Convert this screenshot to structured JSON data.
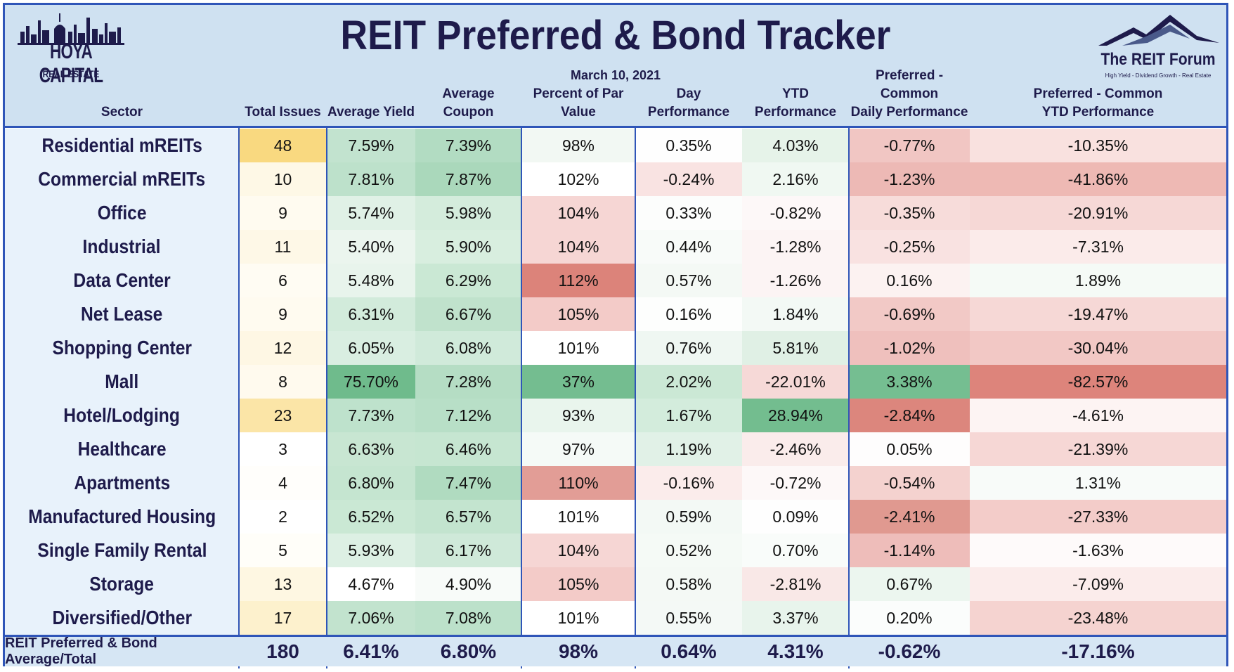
{
  "header": {
    "title": "REIT Preferred & Bond Tracker",
    "date": "March 10, 2021",
    "logo_left": {
      "line1": "HOYA CAPITAL",
      "line2": "REAL ESTATE"
    },
    "logo_right": {
      "line1": "The REIT Forum",
      "line2": "High Yield - Dividend Growth - Real Estate"
    }
  },
  "columns": [
    {
      "line1": "Sector",
      "line2": ""
    },
    {
      "line1": "Total Issues",
      "line2": ""
    },
    {
      "line1": "Average Yield",
      "line2": ""
    },
    {
      "line1": "Average Coupon",
      "line2": ""
    },
    {
      "line1": "Percent of Par Value",
      "line2": ""
    },
    {
      "line1": "Day Performance",
      "line2": ""
    },
    {
      "line1": "YTD Performance",
      "line2": ""
    },
    {
      "line1": "Preferred - Common",
      "line2": "Daily Performance"
    },
    {
      "line1": "Preferred - Common",
      "line2": "YTD Performance"
    }
  ],
  "rows": [
    {
      "sector": "Residential mREITs",
      "issues": "48",
      "yield": "7.59%",
      "coupon": "7.39%",
      "par": "98%",
      "day": "0.35%",
      "ytd": "4.03%",
      "pc_day": "-0.77%",
      "pc_ytd": "-10.35%",
      "colors": [
        "#f9d980",
        "#c2e3cf",
        "#b2dcc2",
        "#f2f8f3",
        "#fefefe",
        "#e6f3e9",
        "#f1c6c3",
        "#f9e1df"
      ]
    },
    {
      "sector": "Commercial mREITs",
      "issues": "10",
      "yield": "7.81%",
      "coupon": "7.87%",
      "par": "102%",
      "day": "-0.24%",
      "ytd": "2.16%",
      "pc_day": "-1.23%",
      "pc_ytd": "-41.86%",
      "colors": [
        "#fef8e6",
        "#bde1cb",
        "#aad8bb",
        "#ffffff",
        "#f9e3e2",
        "#f0f8f2",
        "#edb9b5",
        "#eeb9b4"
      ]
    },
    {
      "sector": "Office",
      "issues": "9",
      "yield": "5.74%",
      "coupon": "5.98%",
      "par": "104%",
      "day": "0.33%",
      "ytd": "-0.82%",
      "pc_day": "-0.35%",
      "pc_ytd": "-20.91%",
      "colors": [
        "#fffbf0",
        "#e0f1e6",
        "#d4ecdc",
        "#f6d6d4",
        "#fcfdfc",
        "#fdf8f8",
        "#f7dcda",
        "#f6d8d6"
      ]
    },
    {
      "sector": "Industrial",
      "issues": "11",
      "yield": "5.40%",
      "coupon": "5.90%",
      "par": "104%",
      "day": "0.44%",
      "ytd": "-1.28%",
      "pc_day": "-0.25%",
      "pc_ytd": "-7.31%",
      "colors": [
        "#fef8e7",
        "#ebf5ee",
        "#d8eedf",
        "#f6d6d4",
        "#f8fbf9",
        "#fcf4f4",
        "#f9e2e1",
        "#fbebea"
      ]
    },
    {
      "sector": "Data Center",
      "issues": "6",
      "yield": "5.48%",
      "coupon": "6.29%",
      "par": "112%",
      "day": "0.57%",
      "ytd": "-1.26%",
      "pc_day": "0.16%",
      "pc_ytd": "1.89%",
      "colors": [
        "#fffcf3",
        "#e8f4ec",
        "#cae8d4",
        "#dc837a",
        "#f4f9f5",
        "#fcf4f4",
        "#fcf2f1",
        "#f5faf6"
      ]
    },
    {
      "sector": "Net Lease",
      "issues": "9",
      "yield": "6.31%",
      "coupon": "6.67%",
      "par": "105%",
      "day": "0.16%",
      "ytd": "1.84%",
      "pc_day": "-0.69%",
      "pc_ytd": "-19.47%",
      "colors": [
        "#fffbf0",
        "#d2ebdb",
        "#c0e2cc",
        "#f3cbc8",
        "#fdfefd",
        "#f3f9f5",
        "#f2c9c6",
        "#f6d8d6"
      ]
    },
    {
      "sector": "Shopping Center",
      "issues": "12",
      "yield": "6.05%",
      "coupon": "6.08%",
      "par": "101%",
      "day": "0.76%",
      "ytd": "5.81%",
      "pc_day": "-1.02%",
      "pc_ytd": "-30.04%",
      "colors": [
        "#fef7e4",
        "#d9eee1",
        "#d0eada",
        "#ffffff",
        "#eff7f2",
        "#e0f0e5",
        "#efc0bd",
        "#f2c8c5"
      ]
    },
    {
      "sector": "Mall",
      "issues": "8",
      "yield": "75.70%",
      "coupon": "7.28%",
      "par": "37%",
      "day": "2.02%",
      "ytd": "-22.01%",
      "pc_day": "3.38%",
      "pc_ytd": "-82.57%",
      "colors": [
        "#fffaee",
        "#6fbb8c",
        "#b5ddc4",
        "#74bd90",
        "#cbe8d5",
        "#f6d9d7",
        "#75be91",
        "#dd847b"
      ]
    },
    {
      "sector": "Hotel/Lodging",
      "issues": "23",
      "yield": "7.73%",
      "coupon": "7.12%",
      "par": "93%",
      "day": "1.67%",
      "ytd": "28.94%",
      "pc_day": "-2.84%",
      "pc_ytd": "-4.61%",
      "colors": [
        "#fbe5a7",
        "#bee2cc",
        "#b8dfc7",
        "#e9f5ed",
        "#d3ecdc",
        "#73bd8f",
        "#dc867d",
        "#fdf4f3"
      ]
    },
    {
      "sector": "Healthcare",
      "issues": "3",
      "yield": "6.63%",
      "coupon": "6.46%",
      "par": "97%",
      "day": "1.19%",
      "ytd": "-2.46%",
      "pc_day": "0.05%",
      "pc_ytd": "-21.39%",
      "colors": [
        "#ffffff",
        "#c8e6d2",
        "#c6e6d1",
        "#f5faf7",
        "#e1f1e7",
        "#faeceb",
        "#fefdfd",
        "#f6d7d5"
      ]
    },
    {
      "sector": "Apartments",
      "issues": "4",
      "yield": "6.80%",
      "coupon": "7.47%",
      "par": "110%",
      "day": "-0.16%",
      "ytd": "-0.72%",
      "pc_day": "-0.54%",
      "pc_ytd": "1.31%",
      "colors": [
        "#fffefb",
        "#c5e5d0",
        "#b0dbc0",
        "#e29d96",
        "#fbeceb",
        "#fdf8f8",
        "#f4d2cf",
        "#f8fbf9"
      ]
    },
    {
      "sector": "Manufactured Housing",
      "issues": "2",
      "yield": "6.52%",
      "coupon": "6.57%",
      "par": "101%",
      "day": "0.59%",
      "ytd": "0.09%",
      "pc_day": "-2.41%",
      "pc_ytd": "-27.33%",
      "colors": [
        "#ffffff",
        "#cae8d4",
        "#c3e4cf",
        "#ffffff",
        "#f3f9f5",
        "#fefefe",
        "#e09990",
        "#f3ccc9"
      ]
    },
    {
      "sector": "Single Family Rental",
      "issues": "5",
      "yield": "5.93%",
      "coupon": "6.17%",
      "par": "104%",
      "day": "0.52%",
      "ytd": "0.70%",
      "pc_day": "-1.14%",
      "pc_ytd": "-1.63%",
      "colors": [
        "#fffef9",
        "#ddf0e4",
        "#cfe9d9",
        "#f6d6d4",
        "#f5faf6",
        "#f9fcfa",
        "#eebdba",
        "#fefafa"
      ]
    },
    {
      "sector": "Storage",
      "issues": "13",
      "yield": "4.67%",
      "coupon": "4.90%",
      "par": "105%",
      "day": "0.58%",
      "ytd": "-2.81%",
      "pc_day": "0.67%",
      "pc_ytd": "-7.09%",
      "colors": [
        "#fef7e2",
        "#ffffff",
        "#f8fbf9",
        "#f3cbc8",
        "#f4f9f5",
        "#f9e8e7",
        "#ecf6ef",
        "#fbeceb"
      ]
    },
    {
      "sector": "Diversified/Other",
      "issues": "17",
      "yield": "7.06%",
      "coupon": "7.08%",
      "par": "101%",
      "day": "0.55%",
      "ytd": "3.37%",
      "pc_day": "0.20%",
      "pc_ytd": "-23.48%",
      "colors": [
        "#fdf1cd",
        "#c2e3ce",
        "#bce1ca",
        "#ffffff",
        "#f4f9f6",
        "#e8f4ec",
        "#fbfdfc",
        "#f5d3d0"
      ]
    }
  ],
  "total": {
    "label": "REIT Preferred & Bond Average/Total",
    "issues": "180",
    "yield": "6.41%",
    "coupon": "6.80%",
    "par": "98%",
    "day": "0.64%",
    "ytd": "4.31%",
    "pc_day": "-0.62%",
    "pc_ytd": "-17.16%"
  },
  "colors": {
    "border": "#2f55b8",
    "header_bg": "#cfe1f1",
    "title": "#1e1b4b"
  }
}
